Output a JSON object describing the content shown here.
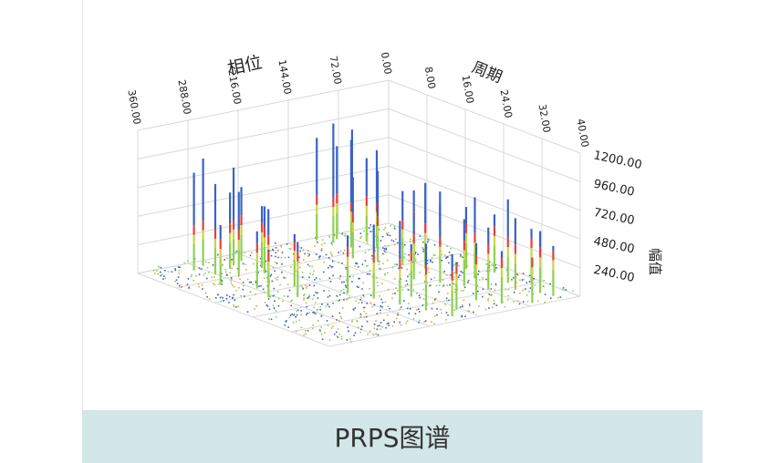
{
  "caption": "PRPS图谱",
  "chart_data": {
    "type": "bar3d",
    "x_axis": {
      "label": "相位",
      "ticks": [
        "360.00",
        "288.00",
        "216.00",
        "144.00",
        "72.00",
        "0.00"
      ],
      "range": [
        0,
        360
      ]
    },
    "y_axis": {
      "label": "周期",
      "ticks": [
        "8.00",
        "16.00",
        "24.00",
        "32.00",
        "40.00"
      ],
      "range": [
        0,
        40
      ]
    },
    "z_axis": {
      "label": "幅值",
      "ticks": [
        "1200.00",
        "960.00",
        "720.00",
        "480.00",
        "240.00"
      ],
      "range": [
        0,
        1200
      ]
    },
    "colors": {
      "low": "#8fd14f",
      "mid": "#e8403a",
      "high": "#3b62c4",
      "grid": "#d8d8d8"
    },
    "bars": [
      [
        300,
        3,
        820
      ],
      [
        290,
        6,
        760
      ],
      [
        280,
        2,
        900
      ],
      [
        270,
        8,
        700
      ],
      [
        262,
        5,
        640
      ],
      [
        250,
        4,
        820
      ],
      [
        240,
        9,
        560
      ],
      [
        232,
        3,
        620
      ],
      [
        310,
        10,
        500
      ],
      [
        255,
        12,
        600
      ],
      [
        285,
        14,
        480
      ],
      [
        245,
        16,
        440
      ],
      [
        230,
        7,
        520
      ],
      [
        296,
        18,
        400
      ],
      [
        268,
        20,
        460
      ],
      [
        110,
        1,
        860
      ],
      [
        100,
        3,
        1000
      ],
      [
        95,
        6,
        900
      ],
      [
        88,
        2,
        780
      ],
      [
        80,
        4,
        940
      ],
      [
        72,
        8,
        820
      ],
      [
        66,
        5,
        700
      ],
      [
        120,
        10,
        680
      ],
      [
        105,
        13,
        760
      ],
      [
        90,
        16,
        620
      ],
      [
        78,
        19,
        720
      ],
      [
        115,
        22,
        560
      ],
      [
        98,
        25,
        640
      ],
      [
        84,
        28,
        560
      ],
      [
        70,
        31,
        520
      ],
      [
        108,
        34,
        480
      ],
      [
        92,
        37,
        440
      ],
      [
        60,
        14,
        560
      ],
      [
        50,
        18,
        600
      ],
      [
        40,
        22,
        520
      ],
      [
        55,
        26,
        680
      ],
      [
        35,
        30,
        700
      ],
      [
        45,
        33,
        600
      ],
      [
        30,
        36,
        520
      ],
      [
        20,
        25,
        480
      ],
      [
        25,
        38,
        420
      ],
      [
        15,
        32,
        460
      ],
      [
        62,
        39,
        380
      ],
      [
        200,
        26,
        620
      ],
      [
        190,
        30,
        700
      ],
      [
        180,
        34,
        560
      ],
      [
        170,
        38,
        520
      ],
      [
        210,
        22,
        480
      ],
      [
        160,
        28,
        440
      ],
      [
        150,
        36,
        400
      ]
    ]
  }
}
